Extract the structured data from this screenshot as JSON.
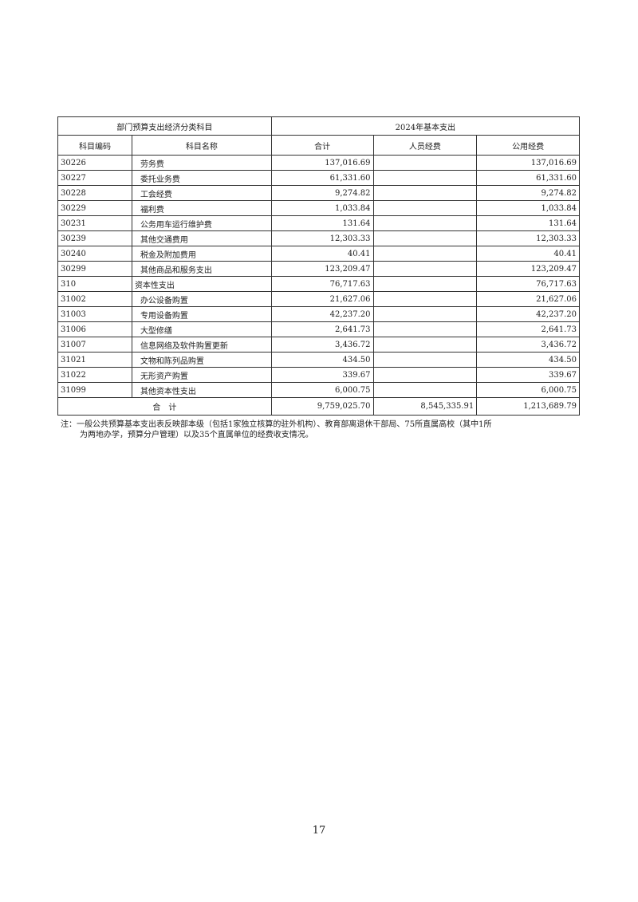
{
  "table": {
    "group_headers": [
      "部门预算支出经济分类科目",
      "2024年基本支出"
    ],
    "columns": [
      "科目编码",
      "科目名称",
      "合计",
      "人员经费",
      "公用经费"
    ],
    "rows": [
      {
        "code": "30226",
        "name": "劳务费",
        "total": "137,016.69",
        "personnel": "",
        "public": "137,016.69",
        "indent": true
      },
      {
        "code": "30227",
        "name": "委托业务费",
        "total": "61,331.60",
        "personnel": "",
        "public": "61,331.60",
        "indent": true
      },
      {
        "code": "30228",
        "name": "工会经费",
        "total": "9,274.82",
        "personnel": "",
        "public": "9,274.82",
        "indent": true
      },
      {
        "code": "30229",
        "name": "福利费",
        "total": "1,033.84",
        "personnel": "",
        "public": "1,033.84",
        "indent": true
      },
      {
        "code": "30231",
        "name": "公务用车运行维护费",
        "total": "131.64",
        "personnel": "",
        "public": "131.64",
        "indent": true
      },
      {
        "code": "30239",
        "name": "其他交通费用",
        "total": "12,303.33",
        "personnel": "",
        "public": "12,303.33",
        "indent": true
      },
      {
        "code": "30240",
        "name": "税金及附加费用",
        "total": "40.41",
        "personnel": "",
        "public": "40.41",
        "indent": true
      },
      {
        "code": "30299",
        "name": "其他商品和服务支出",
        "total": "123,209.47",
        "personnel": "",
        "public": "123,209.47",
        "indent": true
      },
      {
        "code": "310",
        "name": "资本性支出",
        "total": "76,717.63",
        "personnel": "",
        "public": "76,717.63",
        "indent": false
      },
      {
        "code": "31002",
        "name": "办公设备购置",
        "total": "21,627.06",
        "personnel": "",
        "public": "21,627.06",
        "indent": true
      },
      {
        "code": "31003",
        "name": "专用设备购置",
        "total": "42,237.20",
        "personnel": "",
        "public": "42,237.20",
        "indent": true
      },
      {
        "code": "31006",
        "name": "大型修缮",
        "total": "2,641.73",
        "personnel": "",
        "public": "2,641.73",
        "indent": true
      },
      {
        "code": "31007",
        "name": "信息网络及软件购置更新",
        "total": "3,436.72",
        "personnel": "",
        "public": "3,436.72",
        "indent": true
      },
      {
        "code": "31021",
        "name": "文物和陈列品购置",
        "total": "434.50",
        "personnel": "",
        "public": "434.50",
        "indent": true
      },
      {
        "code": "31022",
        "name": "无形资产购置",
        "total": "339.67",
        "personnel": "",
        "public": "339.67",
        "indent": true
      },
      {
        "code": "31099",
        "name": "其他资本性支出",
        "total": "6,000.75",
        "personnel": "",
        "public": "6,000.75",
        "indent": true
      }
    ],
    "total_row": {
      "label": "合　计",
      "total": "9,759,025.70",
      "personnel": "8,545,335.91",
      "public": "1,213,689.79"
    }
  },
  "note": {
    "line1": "注：一般公共预算基本支出表反映部本级（包括1家独立核算的驻外机构）、教育部离退休干部局、75所直属高校（其中1所",
    "line2": "为两地办学，预算分户管理）以及35个直属单位的经费收支情况。"
  },
  "page_number": "17"
}
